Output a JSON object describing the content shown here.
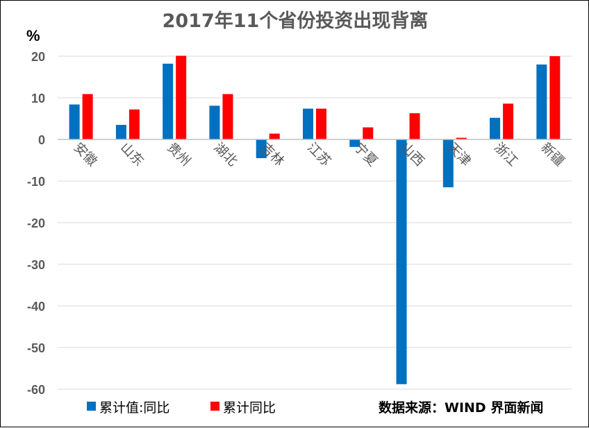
{
  "chart_data": {
    "type": "bar",
    "title": "2017年11个省份投资出现背离",
    "unit_label": "%",
    "categories": [
      "安徽",
      "山东",
      "贵州",
      "湖北",
      "吉林",
      "江苏",
      "宁夏",
      "山西",
      "天津",
      "浙江",
      "新疆"
    ],
    "series": [
      {
        "name": "累计值:同比",
        "color": "#0070C0",
        "values": [
          8.4,
          3.5,
          18.2,
          8.1,
          -4.5,
          7.4,
          -1.8,
          -58.8,
          -11.5,
          5.2,
          18.0
        ]
      },
      {
        "name": "累计同比",
        "color": "#FF0000",
        "values": [
          10.9,
          7.2,
          20.1,
          10.9,
          1.4,
          7.4,
          2.9,
          6.3,
          0.4,
          8.6,
          20.0
        ]
      }
    ],
    "ylim": [
      -60,
      20
    ],
    "yticks": [
      20,
      10,
      0,
      -10,
      -20,
      -30,
      -40,
      -50,
      -60
    ],
    "grid": true,
    "legend_position": "bottom-left",
    "source": "数据来源：WIND 界面新闻"
  }
}
